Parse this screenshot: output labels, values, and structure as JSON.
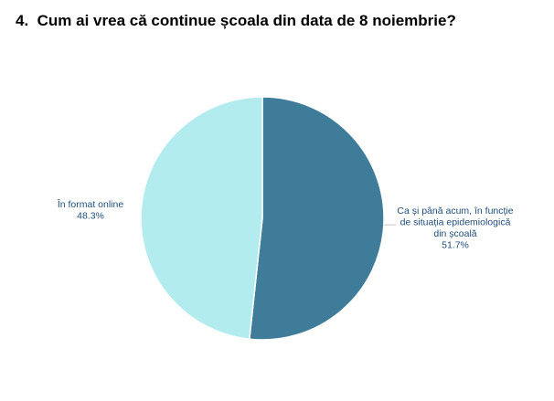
{
  "question": {
    "number": "4.",
    "text": "Cum ai vrea că continue școala din data de 8 noiembrie?"
  },
  "chart_data": {
    "type": "pie",
    "title": "4.  Cum ai vrea că continue școala din data de 8 noiembrie?",
    "slices": [
      {
        "label_lines": [
          "Ca și până acum, în funcție",
          "de situația epidemiologică",
          "din școală"
        ],
        "value": 51.7,
        "value_label": "51.7%",
        "color": "#3f7c99"
      },
      {
        "label_lines": [
          "În format online"
        ],
        "value": 48.3,
        "value_label": "48.3%",
        "color": "#b3ecee"
      }
    ],
    "start_angle": "12 o'clock, clockwise",
    "legend": "none (data labels beside slices)"
  }
}
